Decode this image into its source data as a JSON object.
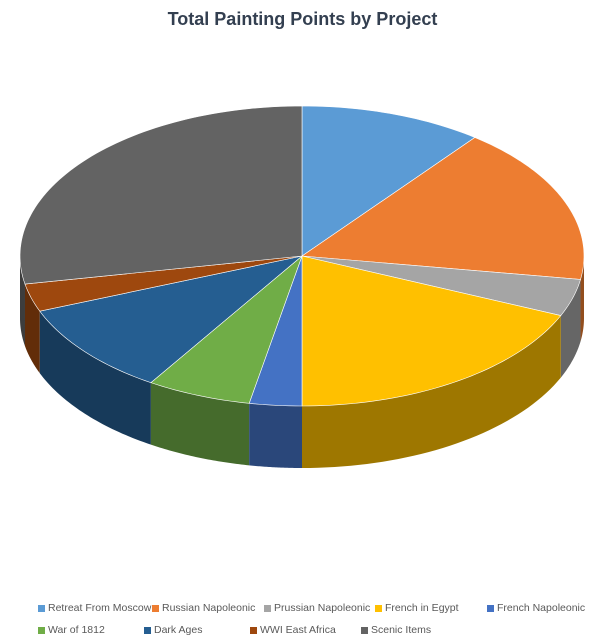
{
  "chart_data": {
    "type": "pie",
    "style": "3d",
    "title": "Total Painting Points by Project",
    "legend_position": "bottom",
    "slices": [
      {
        "label": "Retreat From Moscow",
        "value": 10.5,
        "color": "#5b9bd5"
      },
      {
        "label": "Russian Napoleonic",
        "value": 17.0,
        "color": "#ed7d31"
      },
      {
        "label": "Prussian Napoleonic",
        "value": 4.0,
        "color": "#a5a5a5"
      },
      {
        "label": "French in Egypt",
        "value": 18.5,
        "color": "#ffc000"
      },
      {
        "label": "French Napoleonic",
        "value": 3.0,
        "color": "#4472c4"
      },
      {
        "label": "War of 1812",
        "value": 6.0,
        "color": "#70ad47"
      },
      {
        "label": "Dark Ages",
        "value": 10.0,
        "color": "#255e91"
      },
      {
        "label": "WWI East Africa",
        "value": 3.0,
        "color": "#9e480e"
      },
      {
        "label": "Scenic Items",
        "value": 28.0,
        "color": "#636363"
      }
    ]
  }
}
